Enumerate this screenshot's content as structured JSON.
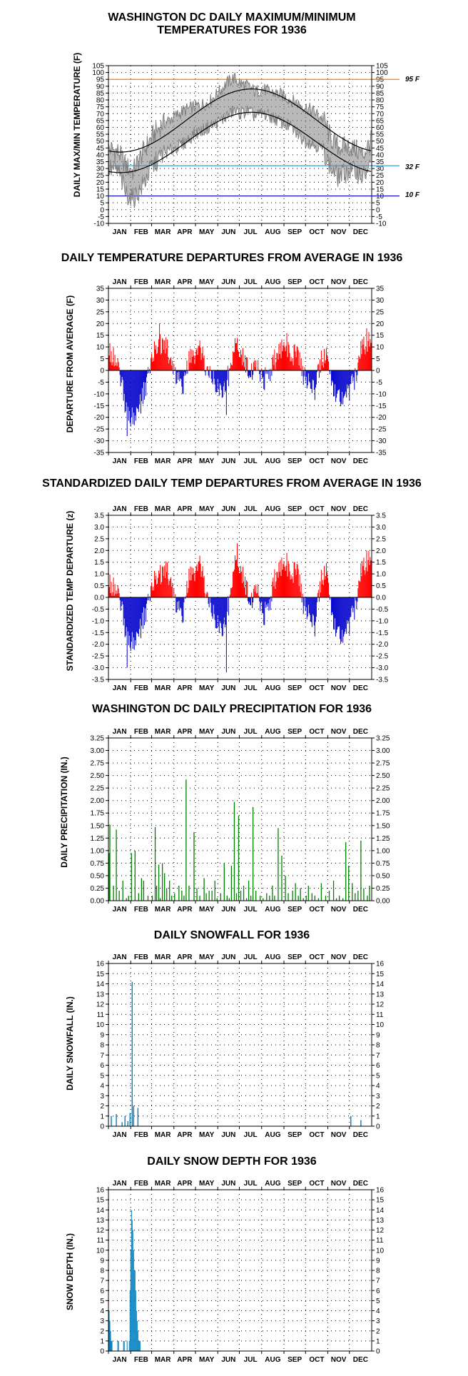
{
  "months": [
    "JAN",
    "FEB",
    "MAR",
    "APR",
    "MAY",
    "JUN",
    "JUL",
    "AUG",
    "SEP",
    "OCT",
    "NOV",
    "DEC"
  ],
  "colors": {
    "max_min_line": "#808080",
    "normal_line": "#000000",
    "warm": "#ff0000",
    "cold": "#0000cc",
    "precip": "#008000",
    "snow": "#0080c0",
    "ref95": "#ff8000",
    "ref32": "#40a0d0",
    "ref10": "#0000cc"
  },
  "chart_data": [
    {
      "id": "temps",
      "type": "line",
      "title_lines": [
        "WASHINGTON DC DAILY MAXIMUM/MINIMUM",
        "TEMPERATURES FOR 1936"
      ],
      "ylabel": "DAILY MAX/MIN TEMPERATURE (F)",
      "ylim": [
        -10,
        105
      ],
      "ytick_step": 5,
      "grid": true,
      "reference_lines": [
        {
          "value": 95,
          "label": "95 F",
          "color": "#ff8000"
        },
        {
          "value": 32,
          "label": "32 F",
          "color": "#40a0d0"
        },
        {
          "value": 10,
          "label": "10 F",
          "color": "#0000cc"
        }
      ],
      "normals": {
        "max_min": 42,
        "max_peak": 88,
        "min_min": 27,
        "min_peak": 71,
        "peak_day": 200
      },
      "observed_max_keypoints": [
        [
          1,
          45
        ],
        [
          15,
          42
        ],
        [
          25,
          32
        ],
        [
          35,
          28
        ],
        [
          45,
          38
        ],
        [
          60,
          52
        ],
        [
          75,
          62
        ],
        [
          90,
          67
        ],
        [
          105,
          72
        ],
        [
          120,
          75
        ],
        [
          140,
          78
        ],
        [
          155,
          86
        ],
        [
          165,
          92
        ],
        [
          175,
          96
        ],
        [
          185,
          92
        ],
        [
          195,
          90
        ],
        [
          205,
          86
        ],
        [
          215,
          88
        ],
        [
          225,
          86
        ],
        [
          240,
          84
        ],
        [
          255,
          80
        ],
        [
          270,
          76
        ],
        [
          285,
          72
        ],
        [
          300,
          66
        ],
        [
          310,
          52
        ],
        [
          320,
          46
        ],
        [
          335,
          46
        ],
        [
          345,
          44
        ],
        [
          355,
          40
        ],
        [
          366,
          50
        ]
      ],
      "observed_min_keypoints": [
        [
          1,
          30
        ],
        [
          15,
          28
        ],
        [
          25,
          12
        ],
        [
          35,
          8
        ],
        [
          45,
          14
        ],
        [
          60,
          30
        ],
        [
          75,
          40
        ],
        [
          90,
          44
        ],
        [
          105,
          48
        ],
        [
          120,
          55
        ],
        [
          140,
          60
        ],
        [
          155,
          64
        ],
        [
          165,
          68
        ],
        [
          175,
          72
        ],
        [
          185,
          70
        ],
        [
          195,
          72
        ],
        [
          205,
          68
        ],
        [
          215,
          70
        ],
        [
          225,
          68
        ],
        [
          240,
          64
        ],
        [
          255,
          60
        ],
        [
          270,
          52
        ],
        [
          285,
          48
        ],
        [
          300,
          44
        ],
        [
          310,
          30
        ],
        [
          320,
          24
        ],
        [
          335,
          28
        ],
        [
          345,
          28
        ],
        [
          355,
          24
        ],
        [
          366,
          32
        ]
      ]
    },
    {
      "id": "departures",
      "type": "bar",
      "title": "DAILY TEMPERATURE DEPARTURES FROM AVERAGE IN 1936",
      "ylabel": "DEPARTURE FROM AVERAGE (F)",
      "ylim": [
        -35,
        35
      ],
      "ytick_step": 5,
      "grid": true,
      "positive_color": "#ff0000",
      "negative_color": "#0000cc",
      "keypoints": [
        [
          1,
          8
        ],
        [
          10,
          6
        ],
        [
          18,
          -4
        ],
        [
          25,
          -15
        ],
        [
          32,
          -20
        ],
        [
          40,
          -18
        ],
        [
          48,
          -12
        ],
        [
          56,
          -3
        ],
        [
          64,
          8
        ],
        [
          72,
          12
        ],
        [
          80,
          10
        ],
        [
          88,
          6
        ],
        [
          96,
          -4
        ],
        [
          104,
          -8
        ],
        [
          112,
          4
        ],
        [
          120,
          6
        ],
        [
          128,
          8
        ],
        [
          136,
          2
        ],
        [
          144,
          -4
        ],
        [
          152,
          -6
        ],
        [
          160,
          -8
        ],
        [
          168,
          -2
        ],
        [
          176,
          10
        ],
        [
          184,
          8
        ],
        [
          192,
          4
        ],
        [
          200,
          -2
        ],
        [
          208,
          2
        ],
        [
          216,
          -4
        ],
        [
          224,
          -2
        ],
        [
          232,
          4
        ],
        [
          240,
          8
        ],
        [
          248,
          12
        ],
        [
          256,
          6
        ],
        [
          264,
          10
        ],
        [
          272,
          -2
        ],
        [
          280,
          -6
        ],
        [
          288,
          -8
        ],
        [
          296,
          4
        ],
        [
          304,
          8
        ],
        [
          312,
          -6
        ],
        [
          320,
          -10
        ],
        [
          328,
          -12
        ],
        [
          336,
          -8
        ],
        [
          344,
          -4
        ],
        [
          352,
          8
        ],
        [
          360,
          12
        ],
        [
          366,
          14
        ]
      ],
      "extremes": [
        [
          27,
          -28
        ],
        [
          72,
          20
        ],
        [
          165,
          -19
        ],
        [
          360,
          18
        ]
      ]
    },
    {
      "id": "standardized",
      "type": "bar",
      "title": "STANDARDIZED DAILY TEMP DEPARTURES FROM AVERAGE IN 1936",
      "ylabel": "STANDARDIZED TEMP DEPARTURE (z)",
      "ylim": [
        -3.5,
        3.5
      ],
      "ytick_step": 0.5,
      "grid": true,
      "positive_color": "#ff0000",
      "negative_color": "#0000cc",
      "keypoints": [
        [
          1,
          0.6
        ],
        [
          10,
          0.5
        ],
        [
          18,
          -0.3
        ],
        [
          25,
          -1.4
        ],
        [
          32,
          -1.9
        ],
        [
          40,
          -1.7
        ],
        [
          48,
          -1.1
        ],
        [
          56,
          -0.3
        ],
        [
          64,
          0.7
        ],
        [
          72,
          1.0
        ],
        [
          80,
          1.1
        ],
        [
          88,
          0.9
        ],
        [
          96,
          -0.5
        ],
        [
          104,
          -0.9
        ],
        [
          112,
          0.8
        ],
        [
          120,
          1.0
        ],
        [
          128,
          1.3
        ],
        [
          136,
          0.4
        ],
        [
          144,
          -0.7
        ],
        [
          152,
          -1.0
        ],
        [
          160,
          -1.3
        ],
        [
          168,
          -0.3
        ],
        [
          176,
          1.4
        ],
        [
          184,
          1.3
        ],
        [
          192,
          0.6
        ],
        [
          200,
          -0.3
        ],
        [
          208,
          0.4
        ],
        [
          216,
          -0.8
        ],
        [
          224,
          -0.4
        ],
        [
          232,
          0.7
        ],
        [
          240,
          1.2
        ],
        [
          248,
          1.5
        ],
        [
          256,
          1.0
        ],
        [
          264,
          1.4
        ],
        [
          272,
          -0.3
        ],
        [
          280,
          -0.8
        ],
        [
          288,
          -1.2
        ],
        [
          296,
          0.7
        ],
        [
          304,
          1.3
        ],
        [
          312,
          -0.8
        ],
        [
          320,
          -1.4
        ],
        [
          328,
          -1.7
        ],
        [
          336,
          -1.1
        ],
        [
          344,
          -0.5
        ],
        [
          352,
          1.0
        ],
        [
          360,
          1.5
        ],
        [
          366,
          1.8
        ]
      ],
      "extremes": [
        [
          27,
          -3.0
        ],
        [
          165,
          -3.2
        ],
        [
          180,
          2.3
        ],
        [
          360,
          2.0
        ]
      ]
    },
    {
      "id": "precip",
      "type": "bar",
      "title": "WASHINGTON DC DAILY PRECIPITATION FOR 1936",
      "ylabel": "DAILY PRECIPITATION (IN.)",
      "ylim": [
        0,
        3.25
      ],
      "ytick_step": 0.25,
      "grid": true,
      "color": "#008000",
      "days": [
        2,
        3,
        8,
        12,
        16,
        21,
        26,
        29,
        33,
        38,
        43,
        47,
        50,
        56,
        62,
        66,
        68,
        71,
        73,
        76,
        79,
        82,
        86,
        89,
        93,
        99,
        103,
        106,
        109,
        113,
        120,
        124,
        128,
        134,
        137,
        141,
        145,
        149,
        152,
        157,
        162,
        166,
        169,
        172,
        176,
        179,
        182,
        185,
        189,
        193,
        196,
        199,
        202,
        206,
        212,
        216,
        221,
        225,
        229,
        232,
        237,
        242,
        247,
        251,
        257,
        261,
        265,
        268,
        272,
        276,
        279,
        284,
        288,
        293,
        297,
        303,
        308,
        314,
        318,
        322,
        327,
        331,
        335,
        340,
        344,
        348,
        352,
        356,
        361,
        364
      ],
      "values": [
        0.95,
        1.52,
        0.3,
        1.42,
        0.2,
        0.4,
        0.05,
        0.1,
        0.95,
        1.0,
        0.15,
        0.45,
        0.4,
        0.1,
        0.1,
        1.47,
        0.3,
        0.72,
        0.05,
        0.75,
        0.55,
        0.25,
        0.4,
        0.1,
        0.15,
        0.3,
        0.2,
        0.1,
        2.42,
        0.3,
        1.37,
        0.25,
        0.1,
        0.45,
        0.15,
        0.2,
        0.2,
        0.4,
        0.05,
        0.15,
        0.75,
        0.1,
        0.05,
        0.7,
        1.97,
        0.15,
        1.7,
        0.2,
        0.3,
        0.05,
        0.4,
        0.1,
        1.87,
        0.2,
        0.1,
        0.05,
        0.15,
        0.1,
        0.3,
        0.1,
        1.45,
        0.9,
        0.5,
        0.15,
        0.2,
        0.35,
        0.1,
        0.25,
        0.05,
        0.1,
        0.3,
        0.15,
        0.1,
        0.05,
        0.35,
        0.1,
        0.2,
        0.4,
        0.05,
        0.1,
        0.05,
        1.17,
        0.7,
        0.35,
        0.15,
        0.2,
        1.2,
        0.25,
        0.1,
        0.3
      ]
    },
    {
      "id": "snowfall",
      "type": "bar",
      "title": "DAILY SNOWFALL FOR 1936",
      "ylabel": "DAILY SNOWFALL (IN.)",
      "ylim": [
        0,
        16
      ],
      "ytick_step": 1,
      "grid": true,
      "color": "#0080c0",
      "days": [
        5,
        12,
        20,
        24,
        28,
        31,
        34,
        36,
        42,
        338,
        352
      ],
      "values": [
        1.0,
        1.2,
        0.4,
        1.0,
        0.5,
        1.3,
        14.2,
        2.0,
        1.8,
        1.0,
        0.6
      ]
    },
    {
      "id": "snowdepth",
      "type": "bar",
      "title": "DAILY SNOW DEPTH FOR 1936",
      "ylabel": "SNOW DEPTH (IN.)",
      "ylim": [
        0,
        16
      ],
      "ytick_step": 1,
      "grid": true,
      "color": "#0080c0",
      "days": [
        1,
        2,
        3,
        4,
        5,
        6,
        14,
        15,
        22,
        23,
        27,
        30,
        31,
        32,
        33,
        34,
        35,
        36,
        37,
        38,
        39,
        40,
        41,
        42,
        43,
        44,
        45
      ],
      "values": [
        6,
        4,
        3,
        2,
        1,
        1,
        1,
        1,
        1,
        1,
        1,
        1,
        6,
        10,
        14,
        13,
        12,
        10,
        8,
        8,
        6,
        4,
        3,
        2,
        1,
        1,
        1
      ]
    }
  ]
}
